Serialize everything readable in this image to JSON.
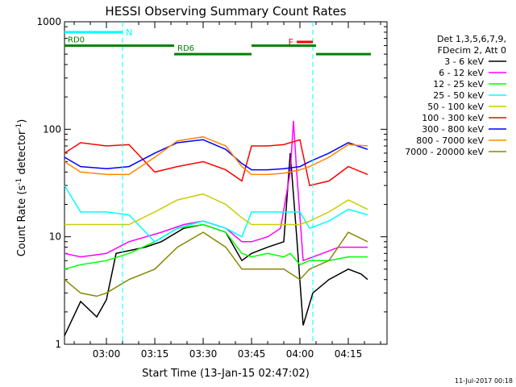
{
  "chart_data": {
    "type": "line",
    "title": "HESSI Observing Summary Count Rates",
    "xlabel": "Start Time (13-Jan-15 02:47:02)",
    "ylabel_main": "Count Rate (s",
    "ylabel_sup1": "-1",
    "ylabel_mid": " detector",
    "ylabel_sup2": "-1",
    "ylabel_end": ")",
    "y_scale": "log",
    "ylim": [
      1,
      1000
    ],
    "xlim_minutes": [
      0,
      100
    ],
    "x_ticks": [
      {
        "label": "03:00",
        "minute": 13
      },
      {
        "label": "03:15",
        "minute": 28
      },
      {
        "label": "03:30",
        "minute": 43
      },
      {
        "label": "03:45",
        "minute": 58
      },
      {
        "label": "04:00",
        "minute": 73
      },
      {
        "label": "04:15",
        "minute": 88
      }
    ],
    "y_ticks": [
      {
        "label": "1",
        "value": 1
      },
      {
        "label": "10",
        "value": 10
      },
      {
        "label": "100",
        "value": 100
      },
      {
        "label": "1000",
        "value": 1000
      }
    ],
    "legend_header": [
      "Det 1,3,5,6,7,9,",
      "FDecim 2, Att 0"
    ],
    "legend_position": "right",
    "series": [
      {
        "name": "3 - 6 keV",
        "color": "#000000",
        "points": [
          [
            0,
            1.2
          ],
          [
            5,
            2.5
          ],
          [
            10,
            1.8
          ],
          [
            13,
            2.6
          ],
          [
            16,
            7
          ],
          [
            25,
            8
          ],
          [
            30,
            9
          ],
          [
            37,
            12
          ],
          [
            43,
            13
          ],
          [
            50,
            11
          ],
          [
            55,
            6
          ],
          [
            58,
            7
          ],
          [
            63,
            8
          ],
          [
            68,
            9
          ],
          [
            70,
            60
          ],
          [
            72,
            10
          ],
          [
            74,
            1.5
          ],
          [
            77,
            3
          ],
          [
            82,
            4
          ],
          [
            88,
            5
          ],
          [
            92,
            4.5
          ],
          [
            94,
            4
          ]
        ]
      },
      {
        "name": "6 - 12 keV",
        "color": "#ff00ff",
        "points": [
          [
            0,
            7
          ],
          [
            5,
            6.5
          ],
          [
            13,
            7
          ],
          [
            20,
            9
          ],
          [
            30,
            11
          ],
          [
            37,
            13
          ],
          [
            43,
            14
          ],
          [
            50,
            12
          ],
          [
            55,
            9
          ],
          [
            58,
            9
          ],
          [
            63,
            10
          ],
          [
            67,
            12
          ],
          [
            70,
            40
          ],
          [
            71,
            120
          ],
          [
            72,
            40
          ],
          [
            74,
            6
          ],
          [
            80,
            7
          ],
          [
            85,
            8
          ],
          [
            90,
            8
          ],
          [
            94,
            8
          ]
        ]
      },
      {
        "name": "12 - 25 keV",
        "color": "#00ff00",
        "points": [
          [
            0,
            5
          ],
          [
            5,
            5.5
          ],
          [
            13,
            6
          ],
          [
            20,
            7
          ],
          [
            28,
            9
          ],
          [
            35,
            12
          ],
          [
            43,
            13
          ],
          [
            50,
            11
          ],
          [
            55,
            7
          ],
          [
            58,
            6.5
          ],
          [
            63,
            7
          ],
          [
            68,
            6.5
          ],
          [
            70,
            7
          ],
          [
            73,
            5.5
          ],
          [
            76,
            6
          ],
          [
            82,
            6
          ],
          [
            88,
            6.5
          ],
          [
            94,
            6.5
          ]
        ]
      },
      {
        "name": "25 - 50 keV",
        "color": "#00ffff",
        "points": [
          [
            0,
            30
          ],
          [
            5,
            17
          ],
          [
            13,
            17
          ],
          [
            20,
            16
          ],
          [
            28,
            9
          ],
          [
            35,
            12
          ],
          [
            43,
            14
          ],
          [
            50,
            12
          ],
          [
            55,
            10
          ],
          [
            58,
            17
          ],
          [
            63,
            17
          ],
          [
            68,
            17
          ],
          [
            70,
            17
          ],
          [
            73,
            17
          ],
          [
            76,
            12
          ],
          [
            82,
            14
          ],
          [
            88,
            18
          ],
          [
            94,
            16
          ]
        ]
      },
      {
        "name": "50 - 100 keV",
        "color": "#cccc00",
        "points": [
          [
            0,
            13
          ],
          [
            5,
            13
          ],
          [
            13,
            13
          ],
          [
            20,
            13
          ],
          [
            28,
            17
          ],
          [
            35,
            22
          ],
          [
            43,
            25
          ],
          [
            50,
            20
          ],
          [
            55,
            15
          ],
          [
            58,
            13
          ],
          [
            63,
            13
          ],
          [
            68,
            13
          ],
          [
            73,
            13
          ],
          [
            76,
            14
          ],
          [
            82,
            17
          ],
          [
            88,
            22
          ],
          [
            94,
            18
          ]
        ]
      },
      {
        "name": "100 - 300 keV",
        "color": "#ff0000",
        "points": [
          [
            0,
            60
          ],
          [
            5,
            75
          ],
          [
            13,
            70
          ],
          [
            20,
            72
          ],
          [
            28,
            40
          ],
          [
            35,
            45
          ],
          [
            43,
            50
          ],
          [
            50,
            42
          ],
          [
            55,
            33
          ],
          [
            58,
            70
          ],
          [
            63,
            70
          ],
          [
            68,
            72
          ],
          [
            73,
            80
          ],
          [
            76,
            30
          ],
          [
            82,
            33
          ],
          [
            88,
            45
          ],
          [
            94,
            38
          ]
        ]
      },
      {
        "name": "300 - 800 keV",
        "color": "#0000ff",
        "points": [
          [
            0,
            55
          ],
          [
            5,
            45
          ],
          [
            13,
            43
          ],
          [
            20,
            45
          ],
          [
            28,
            60
          ],
          [
            35,
            75
          ],
          [
            43,
            80
          ],
          [
            50,
            65
          ],
          [
            55,
            48
          ],
          [
            58,
            42
          ],
          [
            63,
            42
          ],
          [
            68,
            43
          ],
          [
            73,
            45
          ],
          [
            76,
            50
          ],
          [
            82,
            60
          ],
          [
            88,
            75
          ],
          [
            94,
            65
          ]
        ]
      },
      {
        "name": "800 - 7000 keV",
        "color": "#ff8800",
        "points": [
          [
            0,
            50
          ],
          [
            5,
            40
          ],
          [
            13,
            38
          ],
          [
            20,
            38
          ],
          [
            28,
            55
          ],
          [
            35,
            78
          ],
          [
            43,
            85
          ],
          [
            50,
            70
          ],
          [
            55,
            45
          ],
          [
            58,
            38
          ],
          [
            63,
            38
          ],
          [
            68,
            39
          ],
          [
            73,
            42
          ],
          [
            76,
            45
          ],
          [
            82,
            55
          ],
          [
            88,
            72
          ],
          [
            94,
            70
          ]
        ]
      },
      {
        "name": "7000 - 20000 keV",
        "color": "#888800",
        "points": [
          [
            0,
            4
          ],
          [
            5,
            3
          ],
          [
            10,
            2.8
          ],
          [
            13,
            3
          ],
          [
            20,
            4
          ],
          [
            28,
            5
          ],
          [
            35,
            8
          ],
          [
            43,
            11
          ],
          [
            50,
            8
          ],
          [
            55,
            5
          ],
          [
            58,
            5
          ],
          [
            63,
            5
          ],
          [
            68,
            5
          ],
          [
            73,
            4
          ],
          [
            76,
            5
          ],
          [
            82,
            6
          ],
          [
            88,
            11
          ],
          [
            94,
            9
          ]
        ]
      }
    ],
    "flag_bars": [
      {
        "label": "N",
        "color": "#00ffff",
        "segments": [
          [
            0,
            18
          ]
        ],
        "level": 800,
        "dashes": [
          18,
          77
        ]
      },
      {
        "label": "F",
        "color": "#ff0000",
        "segments": [
          [
            72,
            77
          ]
        ],
        "level": 650
      },
      {
        "label": "RD0",
        "color": "#008000",
        "segments": [
          [
            0,
            34
          ],
          [
            58,
            78
          ]
        ],
        "level": 600
      },
      {
        "label": "RD6",
        "color": "#008000",
        "segments": [
          [
            34,
            58
          ],
          [
            78,
            95
          ]
        ],
        "level": 500
      }
    ],
    "footer_date": "11-Jul-2017 00:18"
  }
}
